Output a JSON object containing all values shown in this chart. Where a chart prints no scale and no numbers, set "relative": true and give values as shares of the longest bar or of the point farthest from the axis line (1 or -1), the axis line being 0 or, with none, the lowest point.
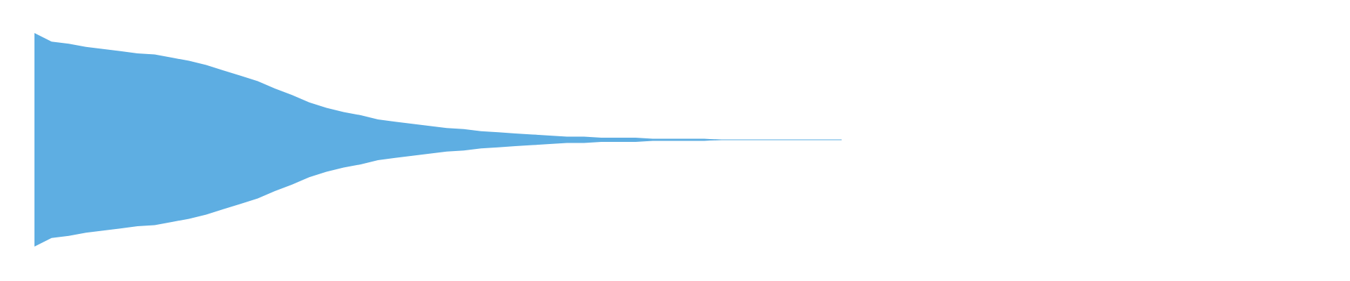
{
  "chart_data": {
    "type": "area",
    "relative": true,
    "categories": [
      null,
      null,
      null,
      null,
      null,
      null,
      null,
      null,
      null,
      null,
      null,
      null,
      null,
      null,
      null,
      null,
      null,
      null,
      null,
      null,
      null,
      null,
      null,
      null,
      null,
      null,
      null,
      null,
      null,
      null,
      null,
      null,
      null,
      null,
      null,
      null,
      null,
      null,
      null,
      null,
      null,
      null,
      null,
      null,
      null,
      null,
      null,
      null
    ],
    "series": [
      {
        "color": "#5dade2",
        "values": [
          1,
          0.92,
          0.9,
          0.87,
          0.85,
          0.83,
          0.81,
          0.8,
          0.77,
          0.74,
          0.7,
          0.65,
          0.6,
          0.55,
          0.48,
          0.42,
          0.35,
          0.3,
          0.26,
          0.23,
          0.19,
          0.17,
          0.15,
          0.13,
          0.11,
          0.1,
          0.08,
          0.07,
          0.06,
          0.05,
          0.04,
          0.03,
          0.03,
          0.02,
          0.02,
          0.02,
          0.01,
          0.01,
          0.01,
          0.01,
          0,
          0,
          0,
          0,
          0,
          0,
          0,
          0
        ]
      },
      {
        "color": "#5eaee2",
        "values": [
          -1,
          -0.92,
          -0.9,
          -0.87,
          -0.85,
          -0.83,
          -0.81,
          -0.8,
          -0.77,
          -0.74,
          -0.7,
          -0.65,
          -0.6,
          -0.55,
          -0.48,
          -0.42,
          -0.35,
          -0.3,
          -0.26,
          -0.23,
          -0.19,
          -0.17,
          -0.15,
          -0.13,
          -0.11,
          -0.1,
          -0.08,
          -0.07,
          -0.06,
          -0.05,
          -0.04,
          -0.03,
          -0.03,
          -0.02,
          -0.02,
          -0.02,
          -0.01,
          -0.01,
          -0.01,
          -0.01,
          0,
          0,
          0,
          0,
          0,
          0,
          0,
          0
        ]
      }
    ],
    "ref_lines": [
      {
        "axis": "y",
        "value": 0,
        "color": "#5dade2"
      }
    ],
    "legend": false
  }
}
